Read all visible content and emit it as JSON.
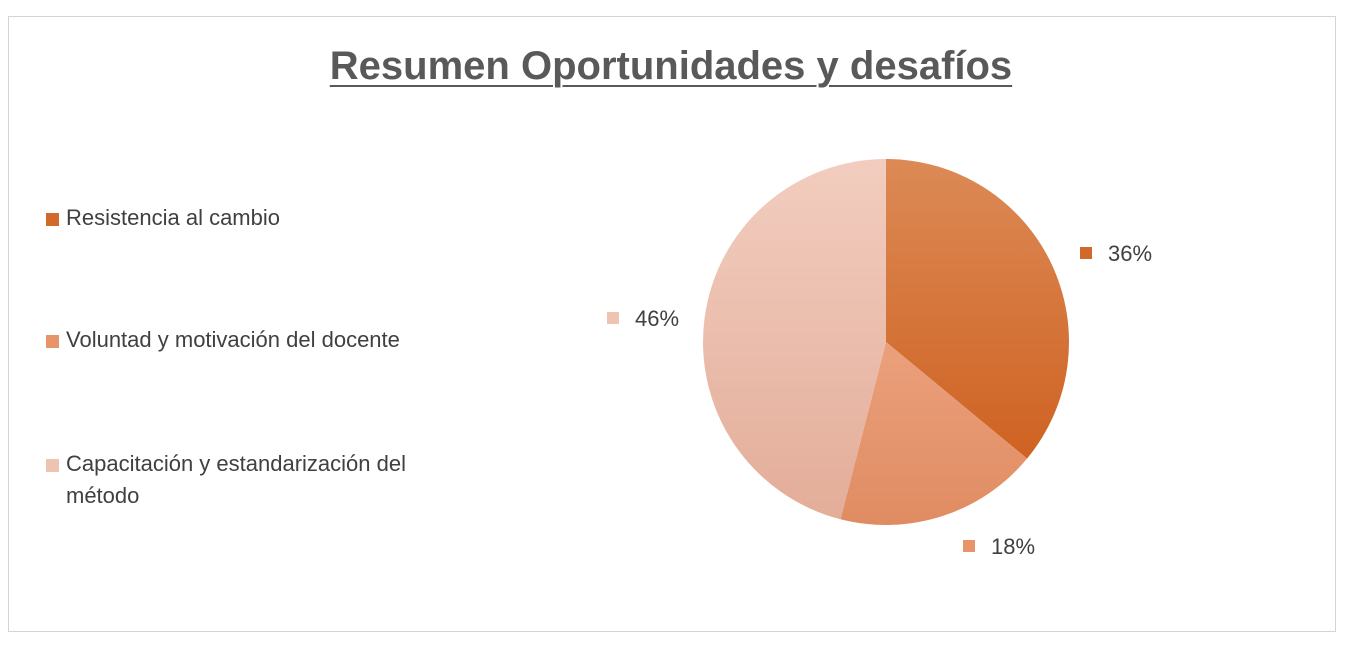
{
  "chart_data": {
    "type": "pie",
    "title": "Resumen Oportunidades y desafíos",
    "categories": [
      "Resistencia al cambio",
      "Voluntad y motivación del docente",
      "Capacitación y estandarización del método"
    ],
    "values": [
      36,
      18,
      46
    ],
    "labels": [
      "36%",
      "18%",
      "46%"
    ],
    "colors": [
      "#d2692a",
      "#e8946a",
      "#efc3b2"
    ],
    "legend_position": "left"
  }
}
